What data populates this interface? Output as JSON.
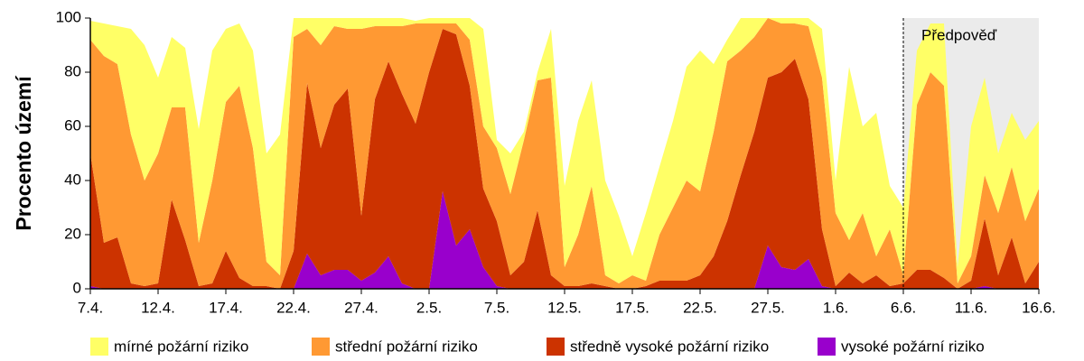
{
  "chart_data": {
    "type": "stacked_area",
    "y_label": "Procento území",
    "categories": [
      "7.4.",
      null,
      null,
      null,
      null,
      "12.4.",
      null,
      null,
      null,
      null,
      "17.4.",
      null,
      null,
      null,
      null,
      "22.4.",
      null,
      null,
      null,
      null,
      "27.4.",
      null,
      null,
      null,
      null,
      "2.5.",
      null,
      null,
      null,
      null,
      "7.5.",
      null,
      null,
      null,
      null,
      "12.5.",
      null,
      null,
      null,
      null,
      "17.5.",
      null,
      null,
      null,
      null,
      "22.5.",
      null,
      null,
      null,
      null,
      "27.5.",
      null,
      null,
      null,
      null,
      "1.6.",
      null,
      null,
      null,
      null,
      "6.6.",
      null,
      null,
      null,
      null,
      "11.6.",
      null,
      null,
      null,
      null,
      "16.6."
    ],
    "series": [
      {
        "name": "mírné požární riziko",
        "color": "#ffff66",
        "values": [
          7,
          12,
          14,
          39,
          50,
          28,
          26,
          22,
          42,
          48,
          27,
          23,
          36,
          40,
          52,
          7,
          4,
          10,
          3,
          4,
          4,
          3,
          3,
          3,
          1,
          2,
          2,
          2,
          8,
          36,
          3,
          15,
          3,
          3,
          18,
          30,
          42,
          39,
          35,
          25,
          7,
          25,
          25,
          32,
          42,
          52,
          25,
          8,
          12,
          7,
          0,
          2,
          2,
          3,
          18,
          12,
          64,
          32,
          53,
          16,
          25,
          20,
          18,
          23,
          6,
          48,
          36,
          22,
          20,
          30,
          25
        ]
      },
      {
        "name": "střední požární riziko",
        "color": "#ff9933",
        "values": [
          42,
          69,
          64,
          55,
          39,
          48,
          34,
          49,
          16,
          38,
          55,
          71,
          51,
          9,
          5,
          79,
          20,
          38,
          29,
          22,
          69,
          27,
          13,
          25,
          37,
          18,
          2,
          4,
          17,
          23,
          27,
          30,
          45,
          48,
          73,
          7,
          19,
          36,
          4,
          2,
          5,
          2,
          17,
          27,
          37,
          31,
          46,
          59,
          46,
          35,
          22,
          18,
          13,
          27,
          56,
          27,
          12,
          26,
          7,
          21,
          3,
          61,
          73,
          71,
          2,
          9,
          16,
          23,
          26,
          23,
          27
        ]
      },
      {
        "name": "středně vysoké požární riziko",
        "color": "#cc3300",
        "values": [
          49,
          17,
          19,
          2,
          1,
          2,
          33,
          18,
          1,
          2,
          14,
          4,
          1,
          1,
          0,
          14,
          63,
          47,
          61,
          67,
          24,
          64,
          72,
          70,
          61,
          80,
          60,
          78,
          53,
          29,
          24,
          5,
          10,
          29,
          5,
          1,
          1,
          2,
          1,
          0,
          0,
          1,
          3,
          3,
          3,
          5,
          12,
          25,
          42,
          58,
          62,
          72,
          78,
          59,
          21,
          1,
          6,
          2,
          5,
          1,
          2,
          7,
          7,
          4,
          0,
          3,
          25,
          5,
          19,
          2,
          10
        ]
      },
      {
        "name": "vysoké požární riziko",
        "color": "#9900cc",
        "values": [
          1,
          0,
          0,
          0,
          0,
          0,
          0,
          0,
          0,
          0,
          0,
          0,
          0,
          0,
          0,
          0,
          13,
          5,
          7,
          7,
          3,
          6,
          12,
          2,
          0,
          0,
          36,
          16,
          22,
          8,
          1,
          0,
          0,
          0,
          0,
          0,
          0,
          0,
          0,
          0,
          0,
          0,
          0,
          0,
          0,
          0,
          0,
          0,
          0,
          0,
          16,
          8,
          7,
          11,
          1,
          0,
          0,
          0,
          0,
          0,
          0,
          0,
          0,
          0,
          0,
          0,
          1,
          0,
          0,
          0,
          0
        ]
      }
    ],
    "ylim": [
      0,
      100
    ],
    "yticks": [
      0,
      20,
      40,
      60,
      80,
      100
    ],
    "grid": false,
    "forecast": {
      "text": "Předpověď",
      "start": "6.6.",
      "color": "#ebebeb"
    },
    "legend": "bottom"
  }
}
